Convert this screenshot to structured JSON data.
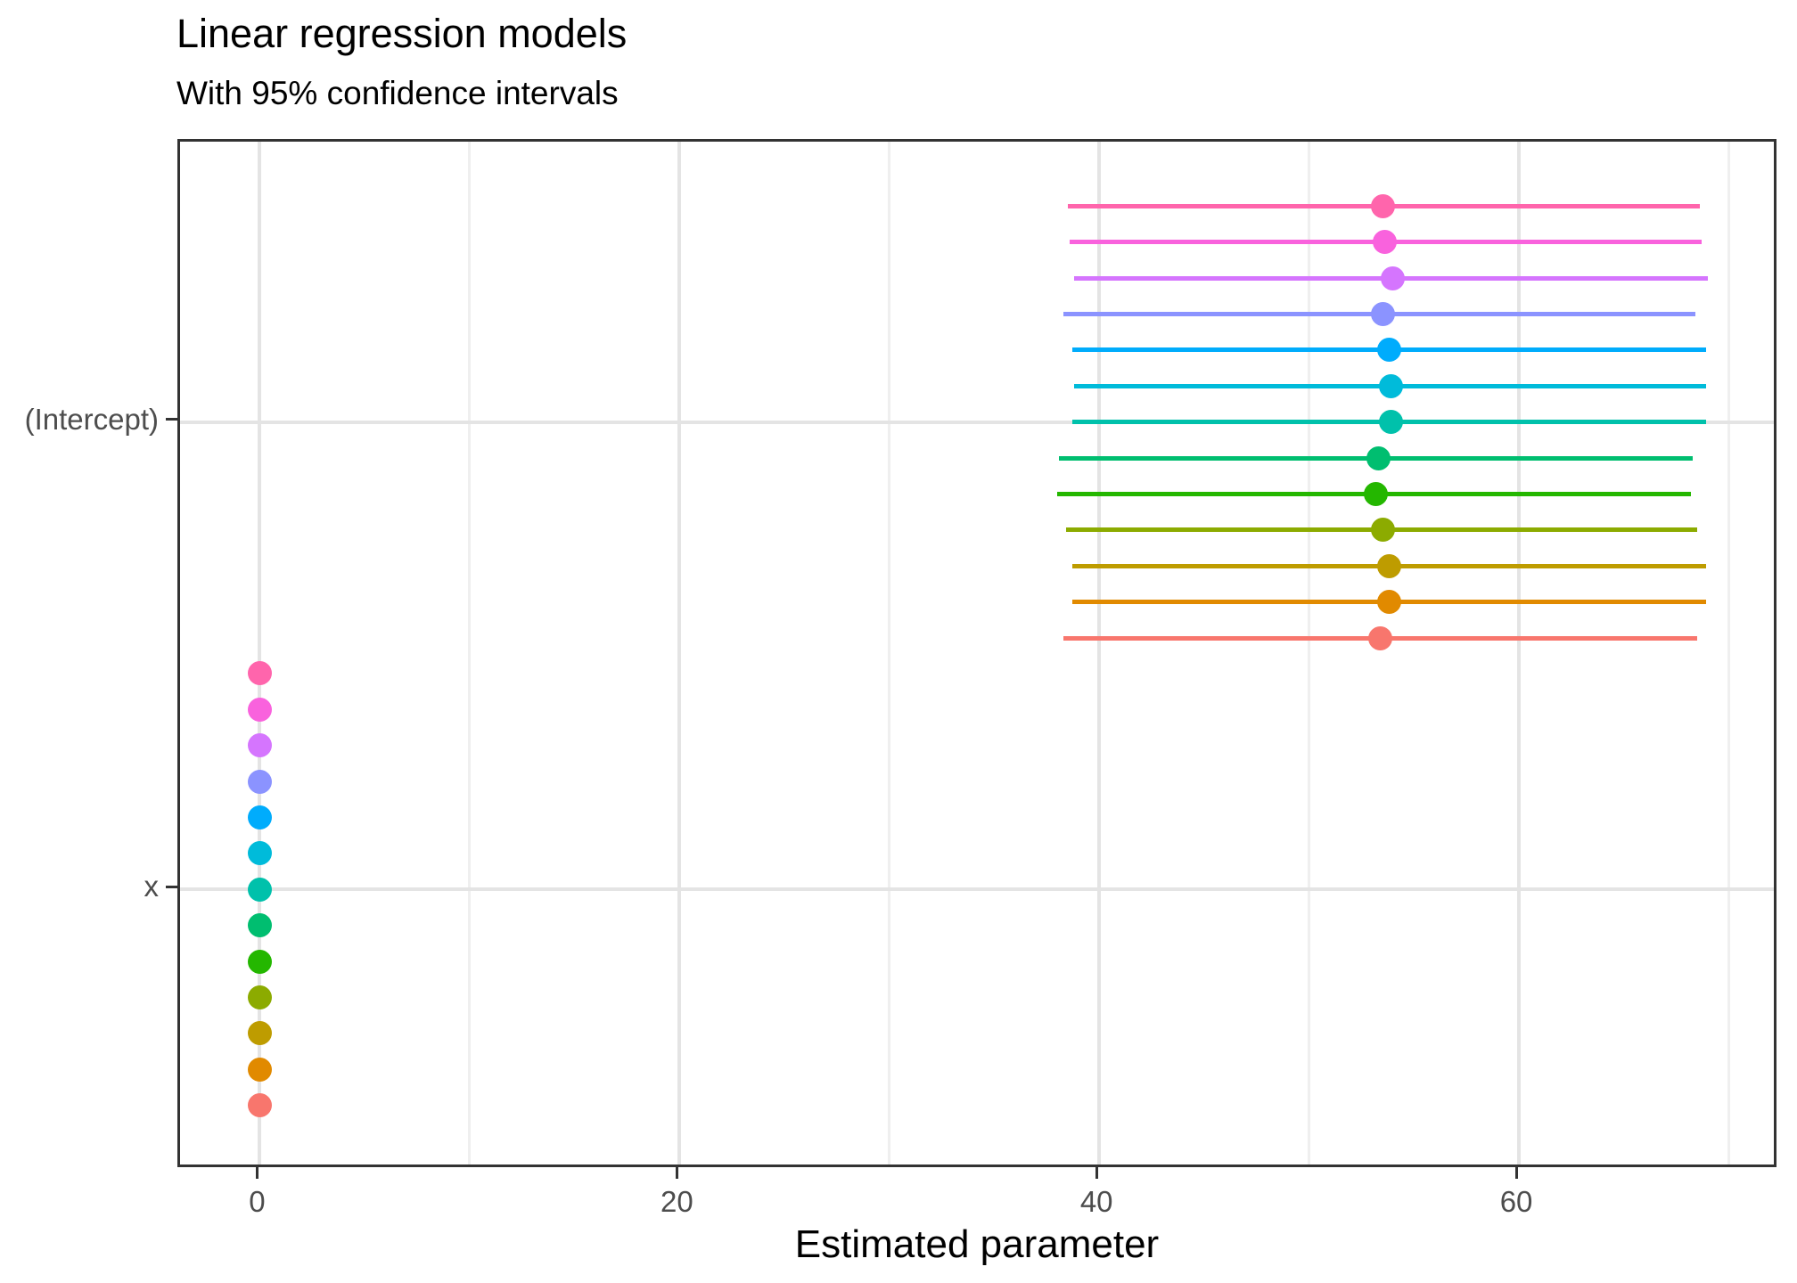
{
  "title": "Linear regression models",
  "subtitle": "With 95% confidence intervals",
  "chart_data": {
    "type": "scatter",
    "subtype": "pointrange-horizontal-dodged",
    "title": "Linear regression models",
    "subtitle": "With 95% confidence intervals",
    "xlabel": "Estimated parameter",
    "ylabel": "",
    "legend_position": "none",
    "grid": true,
    "xlim": [
      -3.8,
      72.4
    ],
    "x_major_ticks": [
      0,
      20,
      40,
      60
    ],
    "x_tick_labels": [
      "0",
      "20",
      "40",
      "60"
    ],
    "x_minor_gridlines": [
      10,
      30,
      50,
      70
    ],
    "y_categories": [
      "(Intercept)",
      "x"
    ],
    "n_models": 13,
    "models": [
      {
        "row": 1,
        "color": "#FF65AC",
        "intercept": {
          "estimate": 53.5,
          "ci_low": 38.5,
          "ci_high": 68.6
        },
        "x": {
          "estimate": 0.0,
          "ci_low": null,
          "ci_high": null
        }
      },
      {
        "row": 2,
        "color": "#F962DD",
        "intercept": {
          "estimate": 53.6,
          "ci_low": 38.6,
          "ci_high": 68.7
        },
        "x": {
          "estimate": 0.0,
          "ci_low": null,
          "ci_high": null
        }
      },
      {
        "row": 3,
        "color": "#D575FE",
        "intercept": {
          "estimate": 54.0,
          "ci_low": 38.8,
          "ci_high": 69.0
        },
        "x": {
          "estimate": 0.0,
          "ci_low": null,
          "ci_high": null
        }
      },
      {
        "row": 4,
        "color": "#8B93FF",
        "intercept": {
          "estimate": 53.5,
          "ci_low": 38.3,
          "ci_high": 68.4
        },
        "x": {
          "estimate": 0.0,
          "ci_low": null,
          "ci_high": null
        }
      },
      {
        "row": 5,
        "color": "#00ACFC",
        "intercept": {
          "estimate": 53.8,
          "ci_low": 38.7,
          "ci_high": 68.9
        },
        "x": {
          "estimate": 0.0,
          "ci_low": null,
          "ci_high": null
        }
      },
      {
        "row": 6,
        "color": "#00BBDA",
        "intercept": {
          "estimate": 53.9,
          "ci_low": 38.8,
          "ci_high": 68.9
        },
        "x": {
          "estimate": 0.0,
          "ci_low": null,
          "ci_high": null
        }
      },
      {
        "row": 7,
        "color": "#00C1AB",
        "intercept": {
          "estimate": 53.9,
          "ci_low": 38.7,
          "ci_high": 68.9
        },
        "x": {
          "estimate": 0.0,
          "ci_low": null,
          "ci_high": null
        }
      },
      {
        "row": 8,
        "color": "#00BE70",
        "intercept": {
          "estimate": 53.3,
          "ci_low": 38.1,
          "ci_high": 68.3
        },
        "x": {
          "estimate": 0.0,
          "ci_low": null,
          "ci_high": null
        }
      },
      {
        "row": 9,
        "color": "#24B700",
        "intercept": {
          "estimate": 53.2,
          "ci_low": 38.0,
          "ci_high": 68.2
        },
        "x": {
          "estimate": 0.0,
          "ci_low": null,
          "ci_high": null
        }
      },
      {
        "row": 10,
        "color": "#8CAB00",
        "intercept": {
          "estimate": 53.5,
          "ci_low": 38.4,
          "ci_high": 68.5
        },
        "x": {
          "estimate": 0.0,
          "ci_low": null,
          "ci_high": null
        }
      },
      {
        "row": 11,
        "color": "#BE9C00",
        "intercept": {
          "estimate": 53.8,
          "ci_low": 38.7,
          "ci_high": 68.9
        },
        "x": {
          "estimate": 0.0,
          "ci_low": null,
          "ci_high": null
        }
      },
      {
        "row": 12,
        "color": "#E18A00",
        "intercept": {
          "estimate": 53.8,
          "ci_low": 38.7,
          "ci_high": 68.9
        },
        "x": {
          "estimate": 0.0,
          "ci_low": null,
          "ci_high": null
        }
      },
      {
        "row": 13,
        "color": "#F8766D",
        "intercept": {
          "estimate": 53.4,
          "ci_low": 38.3,
          "ci_high": 68.5
        },
        "x": {
          "estimate": 0.0,
          "ci_low": null,
          "ci_high": null
        }
      }
    ]
  },
  "colors": {
    "panel_border": "#333333",
    "grid_major": "#e4e4e4",
    "grid_minor": "#efefef",
    "tick_label": "#4d4d4d",
    "text": "#000000",
    "background": "#ffffff"
  }
}
